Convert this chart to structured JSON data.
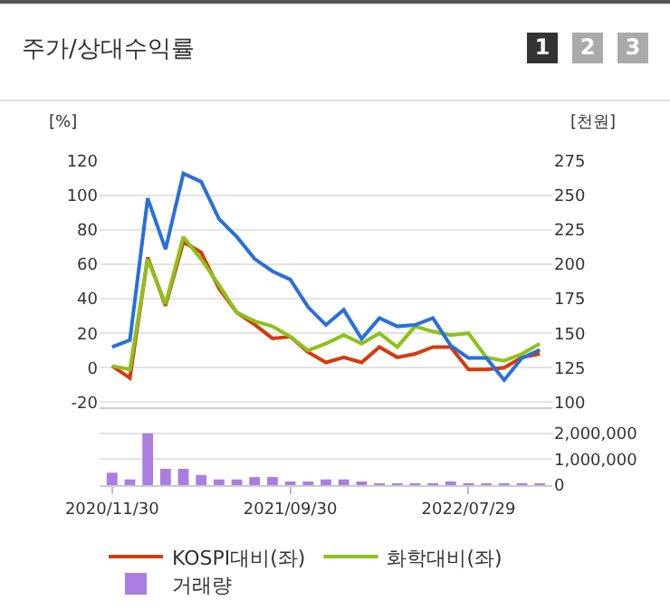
{
  "chart_data": [
    {
      "type": "line",
      "title": "주가/상대수익률",
      "annotations": [
        "1",
        "2",
        "3"
      ],
      "ylabel": "[%]",
      "y2label": "[천원]",
      "categories": [
        "2020/11/30",
        null,
        null,
        null,
        null,
        null,
        null,
        null,
        null,
        null,
        "2021/09/30",
        null,
        null,
        null,
        null,
        null,
        null,
        null,
        null,
        null,
        "2022/07/29",
        null,
        null,
        null,
        null
      ],
      "series": [
        {
          "axis": "y2",
          "color": "#2a6fdb",
          "values": [
            140,
            145,
            248,
            211,
            266,
            260,
            233,
            220,
            204,
            195,
            189,
            169,
            156,
            167,
            146,
            161,
            155,
            156,
            161,
            141,
            132,
            132,
            116,
            132,
            138
          ]
        },
        {
          "name": "KOSPI대비(좌)",
          "color": "#d63a0c",
          "values": [
            1,
            -6,
            64,
            36,
            73,
            67,
            46,
            32,
            25,
            17,
            18,
            9,
            3,
            6,
            3,
            12,
            6,
            8,
            12,
            12,
            -1,
            -1,
            0,
            6,
            8
          ]
        },
        {
          "name": "화학대비(좌)",
          "color": "#8cc21a",
          "values": [
            1,
            -1,
            63,
            37,
            76,
            63,
            48,
            32,
            27,
            24,
            18,
            10,
            14,
            19,
            14,
            20,
            12,
            24,
            21,
            19,
            20,
            6,
            4,
            8,
            14
          ]
        }
      ],
      "ylim": [
        -23,
        120
      ],
      "yticks": [
        -20,
        0,
        20,
        40,
        60,
        80,
        100,
        120
      ],
      "y2lim": [
        96.25,
        275
      ],
      "y2ticks": [
        100,
        125,
        150,
        175,
        200,
        225,
        250,
        275
      ],
      "tick_labels": "y",
      "grid": "y",
      "legend": "bottom",
      "marker": "none",
      "line_style": "solid"
    },
    {
      "type": "bar",
      "categories": [
        "2020/11/30",
        null,
        null,
        null,
        null,
        null,
        null,
        null,
        null,
        null,
        "2021/09/30",
        null,
        null,
        null,
        null,
        null,
        null,
        null,
        null,
        null,
        "2022/07/29",
        null,
        null,
        null,
        null
      ],
      "series": [
        {
          "name": "거래량",
          "color": "#a97ee0",
          "values": [
            480000,
            220000,
            2000000,
            630000,
            630000,
            390000,
            220000,
            220000,
            310000,
            310000,
            140000,
            140000,
            220000,
            220000,
            140000,
            70000,
            70000,
            70000,
            70000,
            140000,
            70000,
            70000,
            70000,
            70000,
            70000
          ]
        }
      ],
      "ylim": [
        0,
        2100000
      ],
      "yticks": [
        {
          "value": 0,
          "label": "0"
        },
        {
          "value": 1000000,
          "label": "1,000,000"
        },
        {
          "value": 2000000,
          "label": "2,000,000"
        }
      ],
      "grid": "y",
      "legend": "bottom"
    }
  ]
}
